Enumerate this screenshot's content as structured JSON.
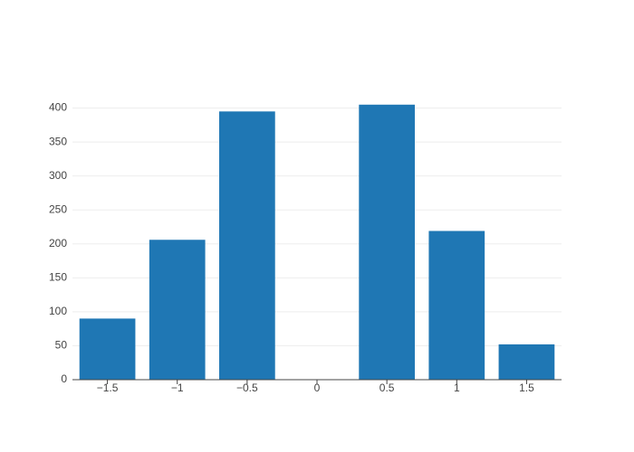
{
  "chart_data": {
    "type": "bar",
    "x": [
      -1.5,
      -1,
      -0.5,
      0,
      0.5,
      1,
      1.5
    ],
    "values": [
      90,
      206,
      395,
      0,
      405,
      219,
      52
    ],
    "color": "#1f77b4",
    "bar_width": 0.4,
    "xlim": [
      -1.75,
      1.75
    ],
    "xticks": [
      {
        "value": -1.5,
        "label": "−1.5"
      },
      {
        "value": -1,
        "label": "−1"
      },
      {
        "value": -0.5,
        "label": "−0.5"
      },
      0,
      0.5,
      1,
      1.5
    ],
    "ylim": [
      0,
      426
    ],
    "yticks": [
      0,
      50,
      100,
      150,
      200,
      250,
      300,
      350,
      400
    ],
    "grid": true
  }
}
